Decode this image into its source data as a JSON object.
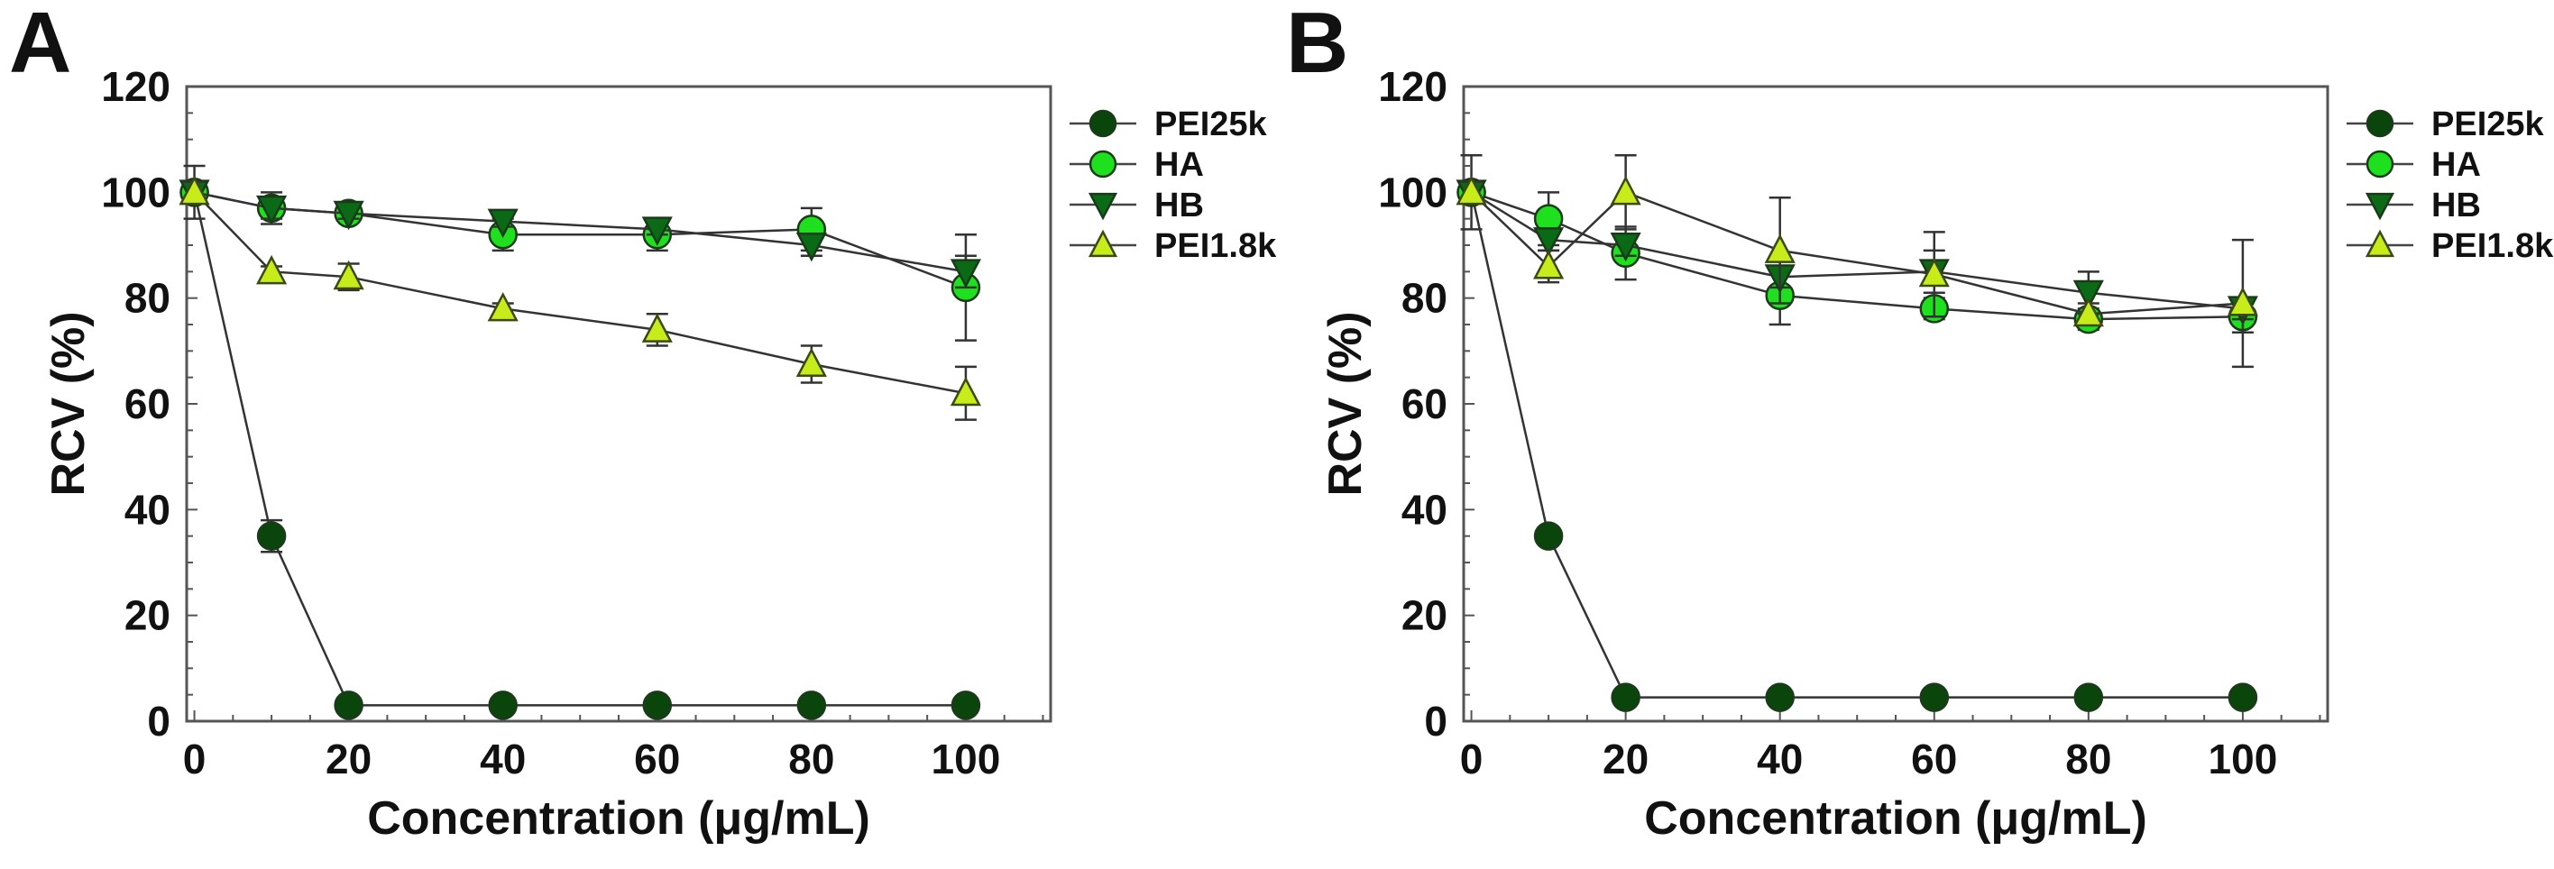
{
  "colors": {
    "PEI25k": "#0a450c",
    "HA": "#1fe01f",
    "HB": "#0a6a16",
    "PEI1.8k": "#c8ec1a"
  },
  "chart_data": [
    {
      "type": "line",
      "panel_label": "A",
      "xlabel": "Concentration (μg/mL)",
      "ylabel": "RCV (%)",
      "xlim": [
        -1,
        111
      ],
      "ylim": [
        0,
        120
      ],
      "xticks": [
        0,
        20,
        40,
        60,
        80,
        100
      ],
      "yticks": [
        0,
        20,
        40,
        60,
        80,
        100,
        120
      ],
      "legend_position": "outside-top-right",
      "x": [
        0,
        10,
        20,
        40,
        60,
        80,
        100
      ],
      "series": [
        {
          "name": "PEI25k",
          "marker": "circle",
          "values": [
            100,
            35,
            3,
            3,
            3,
            3,
            3
          ],
          "errors": [
            0,
            3,
            0,
            0,
            0,
            0,
            0
          ]
        },
        {
          "name": "HA",
          "marker": "circle",
          "values": [
            100,
            97,
            96,
            92,
            92,
            93,
            82
          ],
          "errors": [
            5,
            3,
            1,
            3,
            3,
            4,
            10
          ]
        },
        {
          "name": "HB",
          "marker": "triangle-down",
          "values": [
            100,
            97,
            96,
            94.5,
            93,
            90,
            85
          ],
          "errors": [
            2,
            2,
            1,
            1,
            1,
            2,
            3
          ]
        },
        {
          "name": "PEI1.8k",
          "marker": "triangle-up",
          "values": [
            100,
            85,
            84,
            78,
            74,
            67.5,
            62
          ],
          "errors": [
            2,
            1,
            2.5,
            1,
            3,
            3.5,
            5
          ]
        }
      ]
    },
    {
      "type": "line",
      "panel_label": "B",
      "xlabel": "Concentration (μg/mL)",
      "ylabel": "RCV (%)",
      "xlim": [
        -1,
        111
      ],
      "ylim": [
        0,
        120
      ],
      "xticks": [
        0,
        20,
        40,
        60,
        80,
        100
      ],
      "yticks": [
        0,
        20,
        40,
        60,
        80,
        100,
        120
      ],
      "legend_position": "outside-top-right",
      "x": [
        0,
        10,
        20,
        40,
        60,
        80,
        100
      ],
      "series": [
        {
          "name": "PEI25k",
          "marker": "circle",
          "values": [
            100,
            35,
            4.5,
            4.5,
            4.5,
            4.5,
            4.5
          ],
          "errors": [
            7,
            0,
            0,
            0,
            0,
            0,
            0
          ]
        },
        {
          "name": "HA",
          "marker": "circle",
          "values": [
            100,
            95,
            88.5,
            80.5,
            78,
            76,
            76.5
          ],
          "errors": [
            2,
            5,
            5,
            5.5,
            2,
            2,
            3
          ]
        },
        {
          "name": "HB",
          "marker": "triangle-down",
          "values": [
            100,
            91,
            90,
            84,
            85,
            81,
            78
          ],
          "errors": [
            2,
            2,
            2,
            2,
            4,
            4,
            2
          ]
        },
        {
          "name": "PEI1.8k",
          "marker": "triangle-up",
          "values": [
            100,
            86,
            100,
            89,
            84.5,
            77,
            79
          ],
          "errors": [
            2,
            3,
            7,
            10,
            8,
            2,
            12
          ]
        }
      ]
    }
  ]
}
